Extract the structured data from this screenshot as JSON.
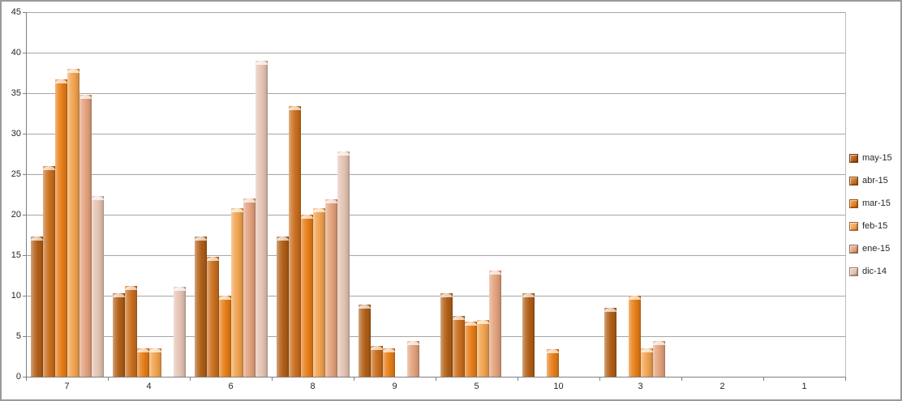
{
  "chart_data": {
    "type": "bar",
    "title": "",
    "xlabel": "",
    "ylabel": "",
    "categories": [
      "7",
      "4",
      "6",
      "8",
      "9",
      "5",
      "10",
      "3",
      "2",
      "1"
    ],
    "series": [
      {
        "name": "may-15",
        "color": "#B05E16",
        "values": [
          17.3,
          10.3,
          17.3,
          17.3,
          8.9,
          10.3,
          10.3,
          8.5,
          0,
          0
        ]
      },
      {
        "name": "abr-15",
        "color": "#C96E1E",
        "values": [
          26,
          11.2,
          14.8,
          33.4,
          3.8,
          7.5,
          0,
          0,
          0,
          0
        ]
      },
      {
        "name": "mar-15",
        "color": "#E67E17",
        "values": [
          36.7,
          3.5,
          10,
          20,
          3.5,
          6.8,
          3.4,
          10,
          0,
          0
        ]
      },
      {
        "name": "feb-15",
        "color": "#F0A24E",
        "values": [
          38,
          3.5,
          20.8,
          20.8,
          0,
          7,
          0,
          3.5,
          0,
          0
        ]
      },
      {
        "name": "ene-15",
        "color": "#E2A17C",
        "values": [
          34.8,
          0,
          22,
          21.9,
          4.4,
          13.1,
          0,
          4.4,
          0,
          0
        ]
      },
      {
        "name": "dic-14",
        "color": "#E3C2B2",
        "values": [
          22.3,
          11.1,
          39,
          27.8,
          0,
          0,
          0,
          0,
          0,
          0
        ]
      }
    ],
    "ylim": [
      0,
      45
    ],
    "yticks": [
      0,
      5,
      10,
      15,
      20,
      25,
      30,
      35,
      40,
      45
    ],
    "grid": true,
    "legend_position": "right",
    "axis_color": "#808080",
    "gridline_color": "#a6a6a6",
    "text_color": "#262626"
  }
}
